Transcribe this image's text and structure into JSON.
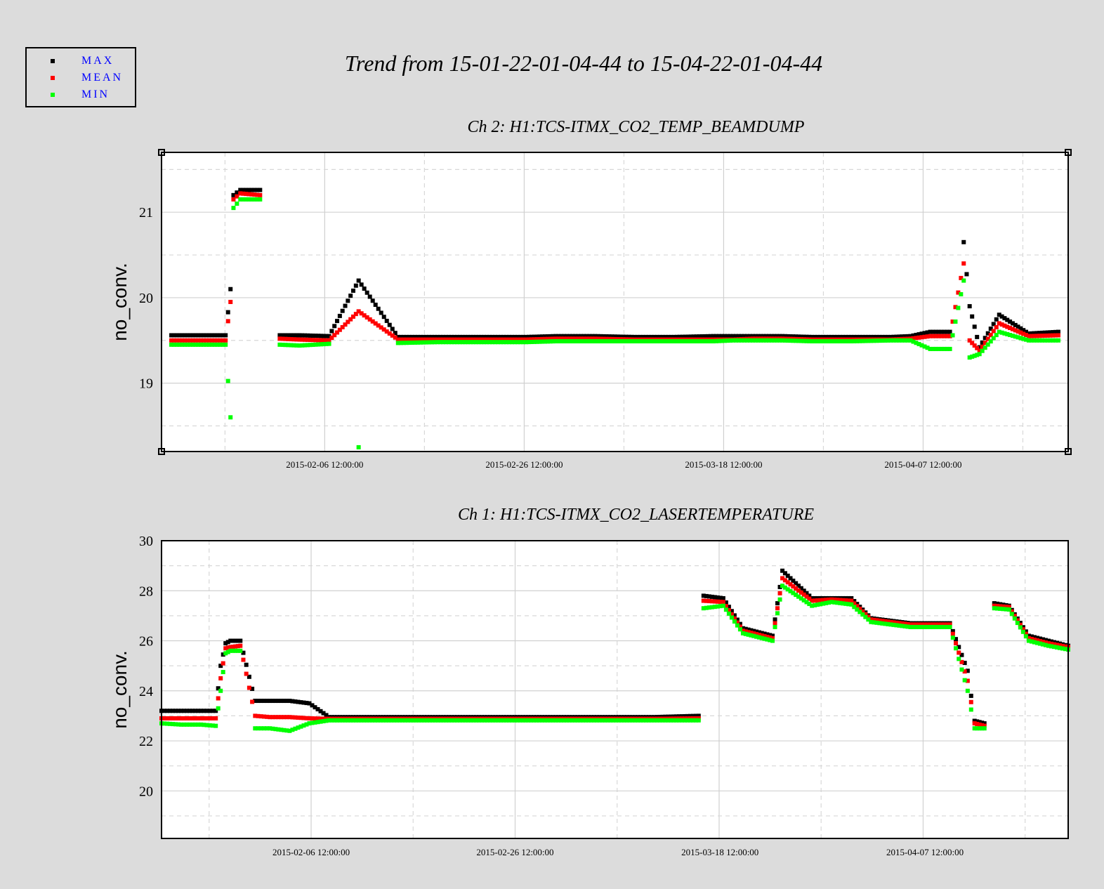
{
  "title": "Trend from 15-01-22-01-04-44 to 15-04-22-01-04-44",
  "legend": [
    {
      "label": "MAX",
      "color": "#000000"
    },
    {
      "label": "MEAN",
      "color": "#ff0000"
    },
    {
      "label": "MIN",
      "color": "#00ff00"
    }
  ],
  "chart_data": [
    {
      "type": "scatter",
      "title": "Ch 2: H1:TCS-ITMX_CO2_TEMP_BEAMDUMP",
      "ylabel": "no_conv.",
      "xlabel": "",
      "x_tick_labels": [
        "2015-02-06 12:00:00",
        "2015-02-26 12:00:00",
        "2015-03-18 12:00:00",
        "2015-04-07 12:00:00"
      ],
      "y_ticks": [
        19,
        20,
        21
      ],
      "ylim": [
        18.2,
        21.7
      ],
      "xlim_days": [
        0,
        92
      ],
      "grid": true,
      "series": [
        {
          "name": "MAX",
          "color": "#000000",
          "x": [
            1,
            4,
            6.5,
            7,
            7.3,
            8,
            10,
            12,
            14,
            17,
            20,
            24,
            28,
            30,
            33,
            37,
            40,
            44,
            48,
            52,
            56,
            58,
            60,
            63,
            66,
            70,
            74,
            76,
            78,
            80,
            81.4,
            82,
            83,
            85,
            88,
            91
          ],
          "y": [
            19.56,
            19.56,
            19.56,
            20.1,
            21.2,
            21.26,
            21.26,
            19.56,
            19.56,
            19.55,
            20.2,
            19.54,
            19.54,
            19.54,
            19.54,
            19.54,
            19.55,
            19.55,
            19.54,
            19.54,
            19.55,
            19.55,
            19.55,
            19.55,
            19.54,
            19.54,
            19.54,
            19.55,
            19.6,
            19.6,
            20.65,
            19.9,
            19.42,
            19.8,
            19.58,
            19.6
          ]
        },
        {
          "name": "MEAN",
          "color": "#ff0000",
          "x": [
            1,
            4,
            6.5,
            7,
            7.3,
            8,
            10,
            12,
            14,
            17,
            20,
            24,
            28,
            30,
            33,
            37,
            40,
            44,
            48,
            52,
            56,
            58,
            60,
            63,
            66,
            70,
            74,
            76,
            78,
            80,
            81.4,
            82,
            83,
            85,
            88,
            91
          ],
          "y": [
            19.5,
            19.5,
            19.5,
            19.95,
            21.15,
            21.22,
            21.2,
            19.52,
            19.51,
            19.5,
            19.84,
            19.51,
            19.51,
            19.51,
            19.51,
            19.51,
            19.52,
            19.52,
            19.51,
            19.51,
            19.51,
            19.51,
            19.52,
            19.52,
            19.51,
            19.51,
            19.51,
            19.52,
            19.55,
            19.55,
            20.4,
            19.5,
            19.38,
            19.7,
            19.55,
            19.56
          ]
        },
        {
          "name": "MIN",
          "color": "#00ff00",
          "x": [
            1,
            4,
            6.5,
            7,
            7.3,
            8,
            10,
            12,
            14,
            17,
            20,
            24,
            28,
            30,
            33,
            37,
            40,
            44,
            48,
            52,
            56,
            58,
            60,
            63,
            66,
            70,
            74,
            76,
            78,
            80,
            81.4,
            82,
            83,
            85,
            88,
            91
          ],
          "y": [
            19.45,
            19.45,
            19.45,
            18.6,
            21.05,
            21.15,
            21.15,
            19.45,
            19.44,
            19.46,
            18.25,
            19.47,
            19.48,
            19.48,
            19.48,
            19.48,
            19.49,
            19.49,
            19.49,
            19.49,
            19.49,
            19.5,
            19.5,
            19.5,
            19.49,
            19.49,
            19.5,
            19.5,
            19.4,
            19.4,
            20.2,
            19.3,
            19.34,
            19.6,
            19.5,
            19.5
          ]
        }
      ]
    },
    {
      "type": "scatter",
      "title": "Ch 1: H1:TCS-ITMX_CO2_LASERTEMPERATURE",
      "ylabel": "no_conv.",
      "xlabel": "",
      "x_tick_labels": [
        "2015-02-06 12:00:00",
        "2015-02-26 12:00:00",
        "2015-03-18 12:00:00",
        "2015-04-07 12:00:00"
      ],
      "y_ticks": [
        20,
        22,
        24,
        26,
        28,
        30
      ],
      "ylim": [
        18.1,
        30
      ],
      "xlim_days": [
        0,
        92
      ],
      "grid": true,
      "series": [
        {
          "name": "MAX",
          "color": "#000000",
          "x": [
            0,
            2,
            4,
            5.5,
            6,
            6.5,
            7,
            8,
            9.5,
            11,
            13,
            15,
            17,
            20,
            25,
            30,
            35,
            40,
            45,
            50,
            54.5,
            55,
            57,
            59,
            62,
            63,
            66,
            68,
            70,
            72,
            74,
            76,
            78,
            80,
            81.8,
            82.5,
            83.5,
            84.5,
            86,
            88,
            90,
            92
          ],
          "y": [
            23.2,
            23.2,
            23.2,
            23.2,
            25.0,
            25.9,
            26.0,
            26.0,
            23.6,
            23.6,
            23.6,
            23.5,
            22.95,
            22.95,
            22.95,
            22.95,
            22.95,
            22.95,
            22.95,
            22.95,
            23.0,
            27.8,
            27.7,
            26.5,
            26.2,
            28.8,
            27.7,
            27.7,
            27.7,
            26.9,
            26.8,
            26.7,
            26.7,
            26.7,
            24.8,
            22.8,
            22.7,
            27.5,
            27.4,
            26.2,
            26.0,
            25.8
          ]
        },
        {
          "name": "MEAN",
          "color": "#ff0000",
          "x": [
            0,
            2,
            4,
            5.5,
            6,
            6.5,
            7,
            8,
            9.5,
            11,
            13,
            15,
            17,
            20,
            25,
            30,
            35,
            40,
            45,
            50,
            54.5,
            55,
            57,
            59,
            62,
            63,
            66,
            68,
            70,
            72,
            74,
            76,
            78,
            80,
            81.8,
            82.5,
            83.5,
            84.5,
            86,
            88,
            90,
            92
          ],
          "y": [
            22.9,
            22.9,
            22.9,
            22.9,
            24.5,
            25.7,
            25.75,
            25.8,
            23.0,
            22.95,
            22.95,
            22.9,
            22.88,
            22.88,
            22.88,
            22.88,
            22.88,
            22.88,
            22.88,
            22.88,
            22.9,
            27.6,
            27.55,
            26.4,
            26.1,
            28.5,
            27.6,
            27.65,
            27.6,
            26.85,
            26.75,
            26.65,
            26.65,
            26.65,
            24.4,
            22.7,
            22.6,
            27.4,
            27.35,
            26.1,
            25.9,
            25.75
          ]
        },
        {
          "name": "MIN",
          "color": "#00ff00",
          "x": [
            0,
            2,
            4,
            5.5,
            6,
            6.5,
            7,
            8,
            9.5,
            11,
            13,
            15,
            17,
            20,
            25,
            30,
            35,
            40,
            45,
            50,
            54.5,
            55,
            57,
            59,
            62,
            63,
            66,
            68,
            70,
            72,
            74,
            76,
            78,
            80,
            81.8,
            82.5,
            83.5,
            84.5,
            86,
            88,
            90,
            92
          ],
          "y": [
            22.7,
            22.65,
            22.65,
            22.6,
            24.0,
            25.5,
            25.6,
            25.6,
            22.5,
            22.5,
            22.4,
            22.7,
            22.82,
            22.82,
            22.82,
            22.82,
            22.82,
            22.82,
            22.82,
            22.82,
            22.82,
            27.3,
            27.4,
            26.3,
            26.0,
            28.2,
            27.4,
            27.55,
            27.45,
            26.75,
            26.65,
            26.55,
            26.55,
            26.55,
            24.0,
            22.5,
            22.5,
            27.3,
            27.25,
            26.0,
            25.8,
            25.65
          ]
        }
      ]
    }
  ]
}
